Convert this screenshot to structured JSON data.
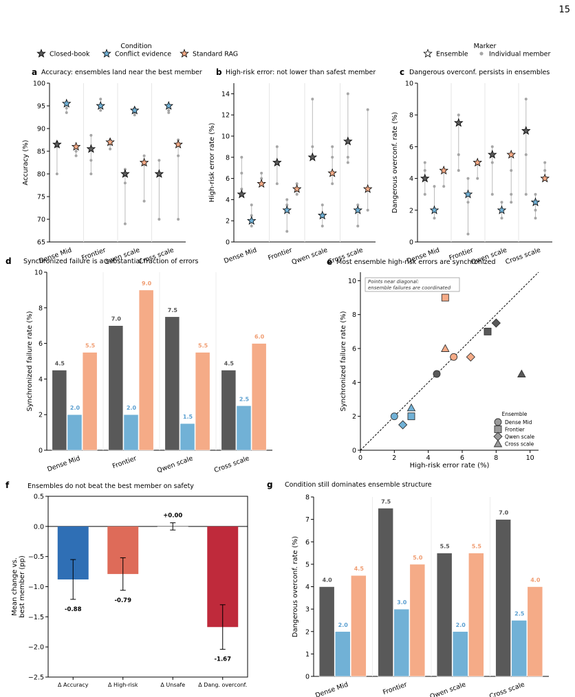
{
  "page_number": "15",
  "colors": {
    "closed_book": "#595959",
    "conflict": "#71b1d6",
    "rag": "#f5ab87",
    "individual": "#a6a6a6",
    "whisker": "#bbbbbb",
    "f_accuracy": "#2f6fb5",
    "f_highrisk": "#de6b59",
    "f_unsafe": "#e9e9e9",
    "f_dang": "#bf2a3b",
    "label_dark": "#555555",
    "label_conflict": "#5b9fd0",
    "label_rag": "#f09d72"
  },
  "legend_condition": {
    "title": "Condition",
    "items": [
      "Closed-book",
      "Conflict evidence",
      "Standard RAG"
    ]
  },
  "legend_marker": {
    "title": "Marker",
    "items": [
      "Ensemble",
      "Individual member"
    ]
  },
  "chart_data": [
    {
      "id": "a",
      "type": "scatter",
      "title": "Accuracy: ensembles land near the best member",
      "ylabel": "Accuracy (%)",
      "ylim": [
        65,
        100
      ],
      "yticks": [
        65,
        70,
        75,
        80,
        85,
        90,
        95,
        100
      ],
      "categories": [
        "Dense Mid",
        "Frontier",
        "Qwen scale",
        "Cross scale"
      ],
      "series": [
        {
          "name": "Closed-book",
          "ensemble": [
            86.5,
            85.5,
            80,
            80
          ],
          "members": [
            [
              80,
              86,
              87
            ],
            [
              80,
              83,
              88.5
            ],
            [
              69,
              78,
              81
            ],
            [
              70,
              80,
              83
            ]
          ]
        },
        {
          "name": "Conflict evidence",
          "ensemble": [
            95.5,
            95,
            94,
            95
          ],
          "members": [
            [
              93.5,
              94.5,
              95.5
            ],
            [
              94,
              95,
              96.5
            ],
            [
              93,
              93.5,
              94.5
            ],
            [
              93.5,
              94,
              95
            ]
          ]
        },
        {
          "name": "Standard RAG",
          "ensemble": [
            86,
            87,
            82.5,
            86.5
          ],
          "members": [
            [
              84,
              85,
              86
            ],
            [
              85.5,
              86.5,
              87.5
            ],
            [
              74,
              82,
              84
            ],
            [
              70,
              84,
              87.5
            ]
          ]
        }
      ]
    },
    {
      "id": "b",
      "type": "scatter",
      "title": "High-risk error: not lower than safest member",
      "ylabel": "High-risk error rate (%)",
      "ylim": [
        0,
        15
      ],
      "yticks": [
        0,
        2,
        4,
        6,
        8,
        10,
        12,
        14
      ],
      "categories": [
        "Dense Mid",
        "Frontier",
        "Qwen scale",
        "Cross scale"
      ],
      "series": [
        {
          "name": "Closed-book",
          "ensemble": [
            4.5,
            7.5,
            8,
            9.5
          ],
          "members": [
            [
              5,
              6.5,
              8
            ],
            [
              5.5,
              7.5,
              9
            ],
            [
              8,
              9,
              13.5
            ],
            [
              7.5,
              8,
              14
            ]
          ]
        },
        {
          "name": "Conflict evidence",
          "ensemble": [
            2,
            3,
            2.5,
            3
          ],
          "members": [
            [
              1.5,
              2.5,
              3.5
            ],
            [
              1,
              3.5,
              4
            ],
            [
              1.5,
              2.5,
              3.5
            ],
            [
              1.5,
              3,
              3.5
            ]
          ]
        },
        {
          "name": "Standard RAG",
          "ensemble": [
            5.5,
            5,
            6.5,
            5
          ],
          "members": [
            [
              5.5,
              6,
              6.5
            ],
            [
              4.5,
              5,
              5.5
            ],
            [
              5.5,
              8,
              9
            ],
            [
              3,
              5,
              12.5
            ]
          ]
        }
      ]
    },
    {
      "id": "c",
      "type": "scatter",
      "title": "Dangerous overconf. persists in ensembles",
      "ylabel": "Dangerous overconf. rate (%)",
      "ylim": [
        0,
        10
      ],
      "yticks": [
        0,
        2,
        4,
        6,
        8,
        10
      ],
      "categories": [
        "Dense Mid",
        "Frontier",
        "Qwen scale",
        "Cross scale"
      ],
      "series": [
        {
          "name": "Closed-book",
          "ensemble": [
            4,
            7.5,
            5.5,
            7
          ],
          "members": [
            [
              3,
              4.5,
              5
            ],
            [
              4.5,
              5.5,
              8
            ],
            [
              3,
              5,
              6
            ],
            [
              3,
              5.5,
              9
            ]
          ]
        },
        {
          "name": "Conflict evidence",
          "ensemble": [
            2,
            3,
            2,
            2.5
          ],
          "members": [
            [
              1.5,
              2,
              3.5
            ],
            [
              0.5,
              2.5,
              4
            ],
            [
              1.5,
              2,
              2.5
            ],
            [
              1.5,
              2,
              3
            ]
          ]
        },
        {
          "name": "Standard RAG",
          "ensemble": [
            4.5,
            5,
            5.5,
            4
          ],
          "members": [
            [
              3.5,
              4.5,
              4.5
            ],
            [
              4,
              5,
              5
            ],
            [
              2.5,
              3,
              4.5
            ],
            [
              4,
              4.5,
              5
            ]
          ]
        }
      ]
    },
    {
      "id": "d",
      "type": "bar",
      "title": "Synchronized failure is a substantial fraction of errors",
      "ylabel": "Synchronized failure rate (%)",
      "ylim": [
        0,
        10
      ],
      "yticks": [
        0,
        2,
        4,
        6,
        8,
        10
      ],
      "categories": [
        "Dense Mid",
        "Frontier",
        "Qwen scale",
        "Cross scale"
      ],
      "series": [
        {
          "name": "Closed-book",
          "values": [
            4.5,
            7.0,
            7.5,
            4.5
          ],
          "labels": [
            "4.5",
            "7.0",
            "7.5",
            "4.5"
          ]
        },
        {
          "name": "Conflict evidence",
          "values": [
            2.0,
            2.0,
            1.5,
            2.5
          ],
          "labels": [
            "2.0",
            "2.0",
            "1.5",
            "2.5"
          ]
        },
        {
          "name": "Standard RAG",
          "values": [
            5.5,
            9.0,
            5.5,
            6.0
          ],
          "labels": [
            "5.5",
            "9.0",
            "5.5",
            "6.0"
          ]
        }
      ]
    },
    {
      "id": "e",
      "type": "scatter",
      "title": "Most ensemble high-risk errors are synchronized",
      "xlabel": "High-risk error rate (%)",
      "ylabel": "Synchronized failure rate (%)",
      "xlim": [
        0,
        10.5
      ],
      "ylim": [
        0,
        10.5
      ],
      "xticks": [
        0,
        2,
        4,
        6,
        8,
        10
      ],
      "yticks": [
        0,
        2,
        4,
        6,
        8,
        10
      ],
      "annotation": [
        "Points near diagonal:",
        "ensemble failures are coordinated"
      ],
      "legend_title": "Ensemble",
      "legend_items": [
        "Dense Mid",
        "Frontier",
        "Qwen scale",
        "Cross scale"
      ],
      "points": [
        {
          "ensemble": "Dense Mid",
          "condition": "Closed-book",
          "x": 4.5,
          "y": 4.5
        },
        {
          "ensemble": "Dense Mid",
          "condition": "Conflict evidence",
          "x": 2.0,
          "y": 2.0
        },
        {
          "ensemble": "Dense Mid",
          "condition": "Standard RAG",
          "x": 5.5,
          "y": 5.5
        },
        {
          "ensemble": "Frontier",
          "condition": "Closed-book",
          "x": 7.5,
          "y": 7.0
        },
        {
          "ensemble": "Frontier",
          "condition": "Conflict evidence",
          "x": 3.0,
          "y": 2.0
        },
        {
          "ensemble": "Frontier",
          "condition": "Standard RAG",
          "x": 5.0,
          "y": 9.0
        },
        {
          "ensemble": "Qwen scale",
          "condition": "Closed-book",
          "x": 8.0,
          "y": 7.5
        },
        {
          "ensemble": "Qwen scale",
          "condition": "Conflict evidence",
          "x": 2.5,
          "y": 1.5
        },
        {
          "ensemble": "Qwen scale",
          "condition": "Standard RAG",
          "x": 6.5,
          "y": 5.5
        },
        {
          "ensemble": "Cross scale",
          "condition": "Closed-book",
          "x": 9.5,
          "y": 4.5
        },
        {
          "ensemble": "Cross scale",
          "condition": "Conflict evidence",
          "x": 3.0,
          "y": 2.5
        },
        {
          "ensemble": "Cross scale",
          "condition": "Standard RAG",
          "x": 5.0,
          "y": 6.0
        }
      ]
    },
    {
      "id": "f",
      "type": "bar",
      "title": "Ensembles do not beat the best member on safety",
      "ylabel": [
        "Mean change vs.",
        "best member (pp)"
      ],
      "ylim": [
        -2.5,
        0.5
      ],
      "yticks": [
        -2.5,
        -2.0,
        -1.5,
        -1.0,
        -0.5,
        0.0,
        0.5
      ],
      "ytick_labels": [
        "−2.5",
        "−2.0",
        "−1.5",
        "−1.0",
        "−0.5",
        "0.0",
        "0.5"
      ],
      "categories": [
        "Δ Accuracy",
        "Δ High-risk",
        "Δ Unsafe",
        "Δ Dang. overconf."
      ],
      "values": [
        -0.88,
        -0.79,
        0.0,
        -1.67
      ],
      "errors": [
        0.33,
        0.27,
        0.06,
        0.37
      ],
      "labels": [
        "-0.88",
        "-0.79",
        "+0.00",
        "-1.67"
      ]
    },
    {
      "id": "g",
      "type": "bar",
      "title": "Condition still dominates ensemble structure",
      "ylabel": "Dangerous overconf. rate (%)",
      "ylim": [
        0,
        8
      ],
      "yticks": [
        0,
        1,
        2,
        3,
        4,
        5,
        6,
        7,
        8
      ],
      "categories": [
        "Dense Mid",
        "Frontier",
        "Qwen scale",
        "Cross scale"
      ],
      "series": [
        {
          "name": "Closed-book",
          "values": [
            4.0,
            7.5,
            5.5,
            7.0
          ],
          "labels": [
            "4.0",
            "7.5",
            "5.5",
            "7.0"
          ]
        },
        {
          "name": "Conflict evidence",
          "values": [
            2.0,
            3.0,
            2.0,
            2.5
          ],
          "labels": [
            "2.0",
            "3.0",
            "2.0",
            "2.5"
          ]
        },
        {
          "name": "Standard RAG",
          "values": [
            4.5,
            5.0,
            5.5,
            4.0
          ],
          "labels": [
            "4.5",
            "5.0",
            "5.5",
            "4.0"
          ]
        }
      ]
    }
  ]
}
